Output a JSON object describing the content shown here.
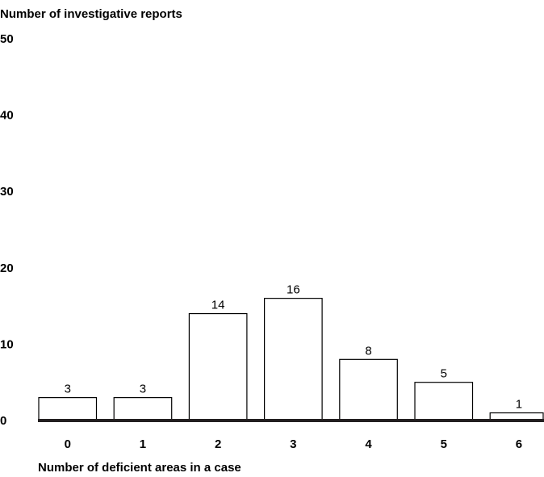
{
  "chart_data": {
    "type": "bar",
    "ylabel": "Number of investigative reports",
    "xlabel": "Number of deficient areas in a case",
    "categories": [
      "0",
      "1",
      "2",
      "3",
      "4",
      "5",
      "6"
    ],
    "values": [
      3,
      3,
      14,
      16,
      8,
      5,
      1
    ],
    "data_labels": [
      "3",
      "3",
      "14",
      "16",
      "8",
      "5",
      "1"
    ],
    "ylim": [
      0,
      50
    ],
    "yticks": [
      "0",
      "10",
      "20",
      "30",
      "40",
      "50"
    ],
    "grid": false,
    "legend": "none",
    "colors": {
      "bar_fill": "#ffffff",
      "bar_stroke": "#000000",
      "axis": "#231f20"
    }
  }
}
